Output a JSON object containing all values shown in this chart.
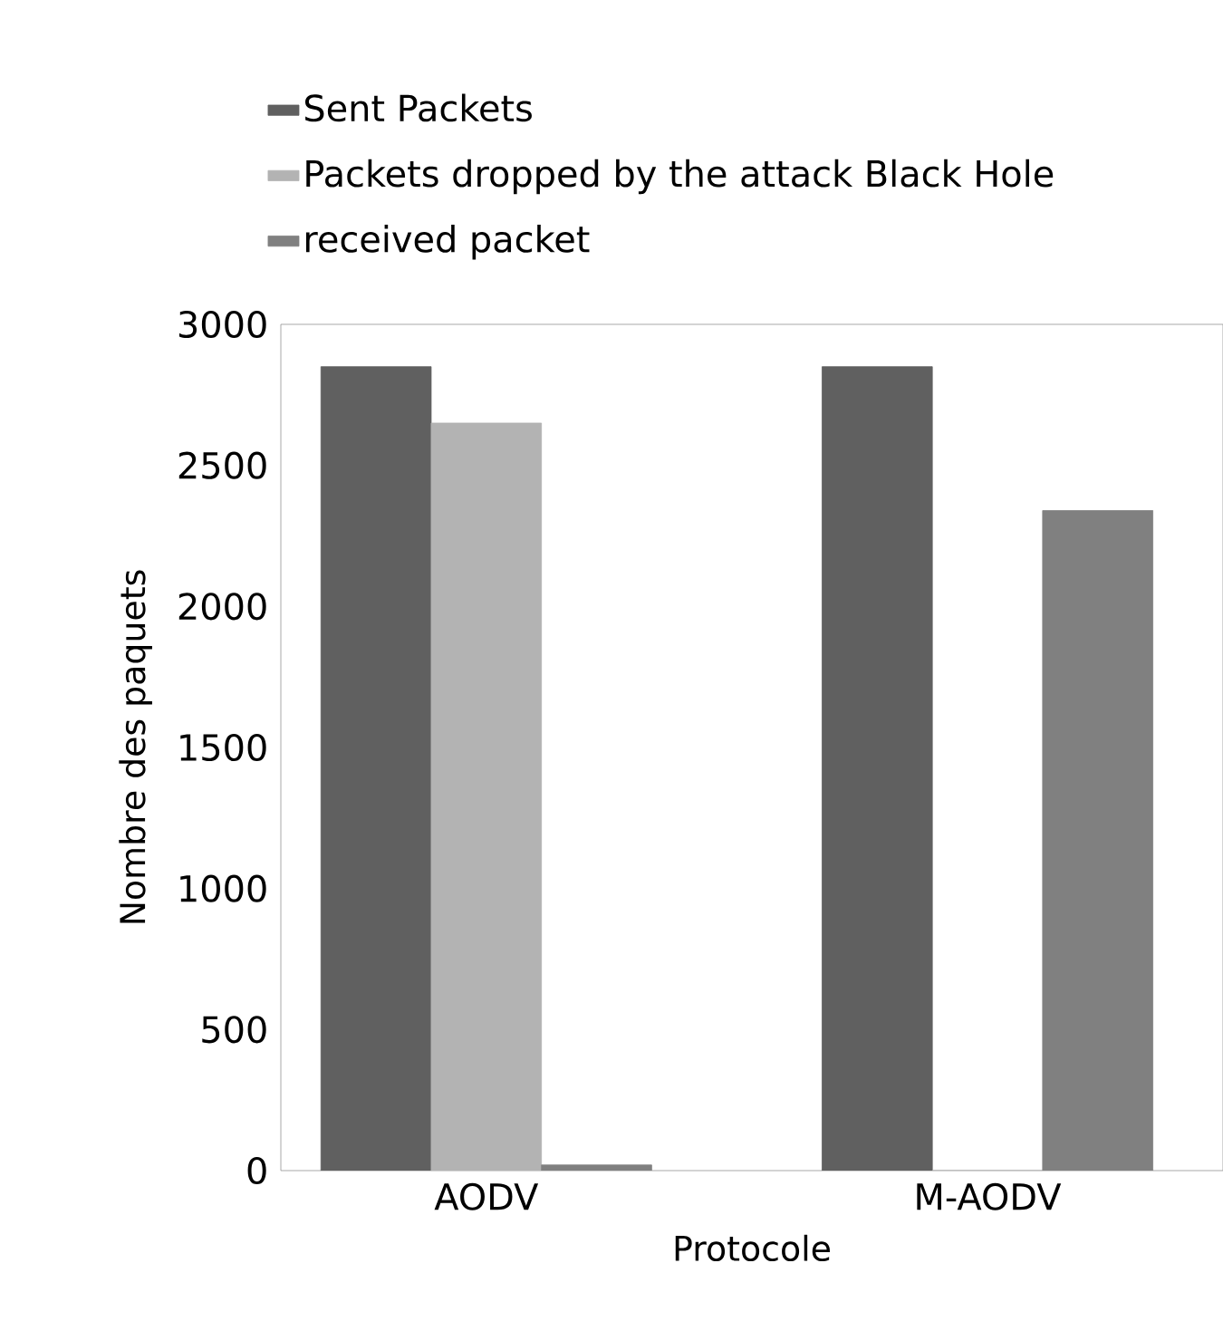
{
  "chart_data": {
    "type": "bar",
    "categories": [
      "AODV",
      "M-AODV"
    ],
    "series": [
      {
        "name": "Sent Packets",
        "color": "#606060",
        "values": [
          2850,
          2850
        ]
      },
      {
        "name": "Packets dropped by the attack Black Hole",
        "color": "#b3b3b3",
        "values": [
          2650,
          0
        ]
      },
      {
        "name": "received packet",
        "color": "#808080",
        "values": [
          20,
          2340
        ]
      }
    ],
    "xlabel": "Protocole",
    "ylabel": "Nombre des paquets",
    "ylim": [
      0,
      3000
    ],
    "yticks": [
      0,
      500,
      1000,
      1500,
      2000,
      2500,
      3000
    ],
    "grid": false,
    "legend": "top left"
  }
}
